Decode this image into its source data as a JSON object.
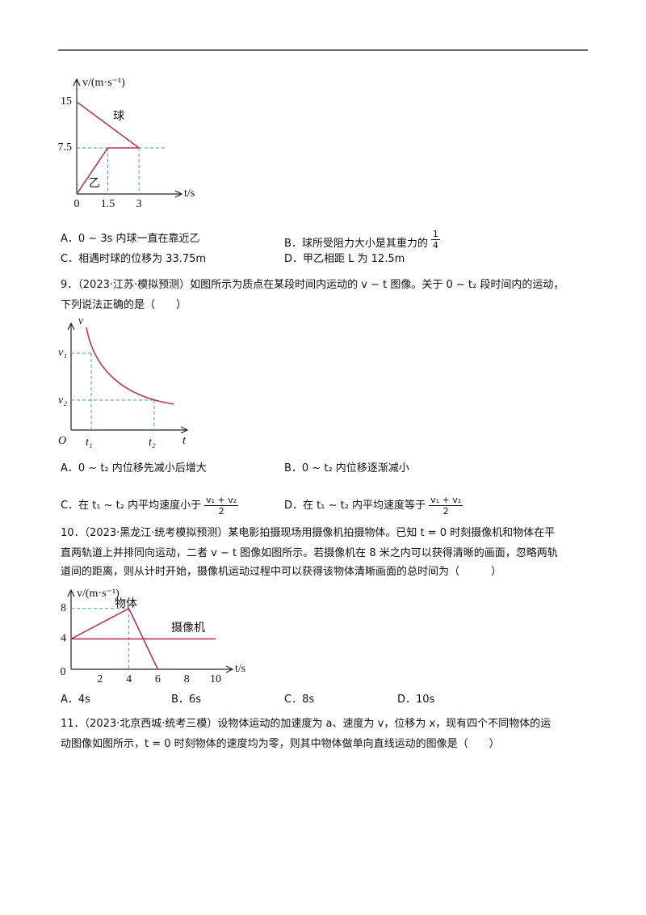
{
  "q8": {
    "figure": {
      "y_label": "v/(m·s⁻¹)",
      "x_label": "t/s",
      "origin": "0",
      "yticks": [
        7.5,
        15
      ],
      "xticks": [
        1.5,
        3
      ],
      "series": [
        {
          "name": "球",
          "x": [
            0,
            3
          ],
          "values": [
            15,
            7.5
          ]
        },
        {
          "name": "乙",
          "x": [
            0,
            1.5,
            3
          ],
          "values": [
            0,
            7.5,
            7.5
          ]
        }
      ]
    },
    "options": [
      {
        "text": "A．0 ~ 3s 内球一直在靠近乙"
      },
      {
        "text": "B．球所受阻力大小是其重力的",
        "num": "1",
        "den": "4"
      },
      {
        "text": "C．相遇时球的位移为 33.75m"
      },
      {
        "text": "D．甲乙相距 L 为 12.5m"
      }
    ]
  },
  "q9": {
    "stem": [
      "9．（2023·江苏·模拟预测）如图所示为质点在某段时间内运动的 v − t 图像。关于 0 ~ t₂ 段时间内的运动，",
      "下列说法正确的是（　　）"
    ],
    "figure": {
      "y_axis": "v",
      "v1": "v₁",
      "v2": "v₂",
      "origin": "O",
      "t1": "t₁",
      "t2": "t₂",
      "x_axis": "t"
    },
    "options": [
      {
        "text": "A．0 ~ t₂ 内位移先减小后增大"
      },
      {
        "text": "B．0 ~ t₂ 内位移逐渐减小"
      },
      {
        "text": "C．在 t₁ ~ t₂ 内平均速度小于",
        "num": "v₁ + v₂",
        "den": "2"
      },
      {
        "text": "D．在 t₁ ~ t₂ 内平均速度等于",
        "num": "v₁ + v₂",
        "den": "2"
      }
    ]
  },
  "q10": {
    "stem": [
      "10．（2023·黑龙江·统考模拟预测）某电影拍摄现场用摄像机拍摄物体。已知 t = 0 时刻摄像机和物体在平",
      "直两轨道上并排同向运动，二者 v − t 图像如图所示。若摄像机在 8 米之内可以获得清晰的画面，忽略两轨",
      "道间的距离，则从计时开始，摄像机运动过程中可以获得该物体清晰画面的总时间为（　　　）"
    ],
    "figure": {
      "y_label": "v/(m·s⁻¹)",
      "x_label": "t/s",
      "origin": "0",
      "yticks": [
        4,
        8
      ],
      "xticks": [
        2,
        4,
        6,
        8,
        10
      ],
      "series": [
        {
          "name": "物体",
          "x": [
            0,
            4,
            6
          ],
          "values": [
            4,
            8,
            0
          ]
        },
        {
          "name": "摄像机",
          "x": [
            0,
            10
          ],
          "values": [
            4,
            4
          ]
        }
      ]
    },
    "options": [
      "A．4s",
      "B．6s",
      "C．8s",
      "D．10s"
    ]
  },
  "q11": {
    "stem": [
      "11．（2023·北京西城·统考三模）设物体运动的加速度为 a、速度为 v，位移为 x，现有四个不同物体的运",
      "动图像如图所示，t = 0 时刻物体的速度均为零，则其中物体做单向直线运动的图像是（　　）"
    ]
  }
}
